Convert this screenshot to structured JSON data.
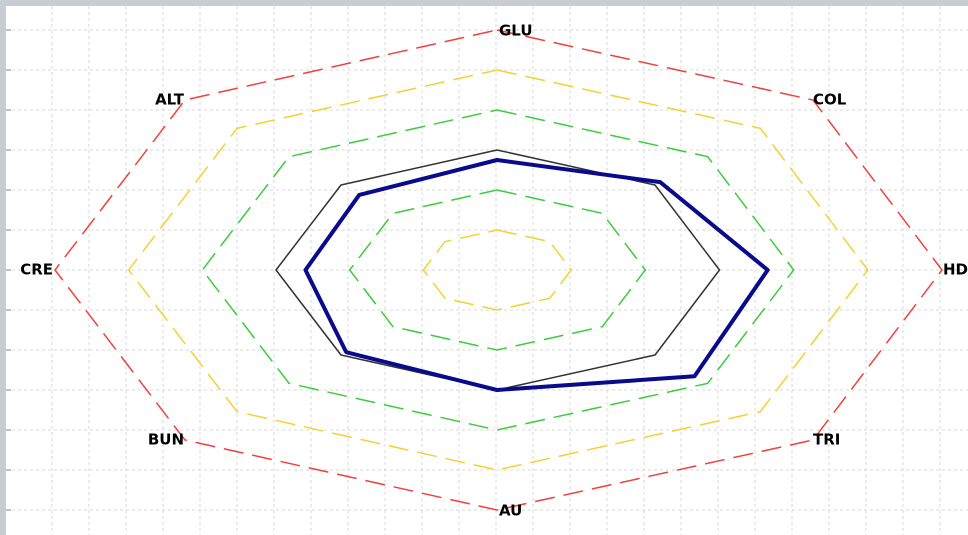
{
  "chart_data": {
    "type": "radar",
    "axes": [
      "GLU",
      "COL",
      "HDL",
      "TRI",
      "AU",
      "BUN",
      "CRE",
      "ALT"
    ],
    "reference_rings": [
      {
        "color": "#f5d033",
        "dashed": true,
        "values": [
          0.2,
          0.2,
          0.2,
          0.2,
          0.2,
          0.2,
          0.2,
          0.2
        ]
      },
      {
        "color": "#3ccc3c",
        "dashed": true,
        "values": [
          0.4,
          0.4,
          0.4,
          0.4,
          0.4,
          0.4,
          0.4,
          0.4
        ]
      },
      {
        "color": "#3ccc3c",
        "dashed": true,
        "values": [
          0.8,
          0.8,
          0.8,
          0.8,
          0.8,
          0.8,
          0.8,
          0.8
        ]
      },
      {
        "color": "#f5d033",
        "dashed": true,
        "values": [
          1.0,
          1.0,
          1.0,
          1.0,
          1.0,
          1.0,
          1.0,
          1.0
        ]
      },
      {
        "color": "#f04040",
        "dashed": true,
        "values": [
          1.2,
          1.2,
          1.2,
          1.2,
          1.2,
          1.2,
          1.2,
          1.2
        ]
      }
    ],
    "series": [
      {
        "color": "#333333",
        "width": 1.5,
        "values": [
          0.6,
          0.6,
          0.6,
          0.6,
          0.6,
          0.6,
          0.6,
          0.6
        ]
      },
      {
        "color": "#0a0a8c",
        "width": 4,
        "values": [
          0.55,
          0.62,
          0.73,
          0.75,
          0.6,
          0.58,
          0.52,
          0.53
        ]
      }
    ],
    "grid": true
  }
}
